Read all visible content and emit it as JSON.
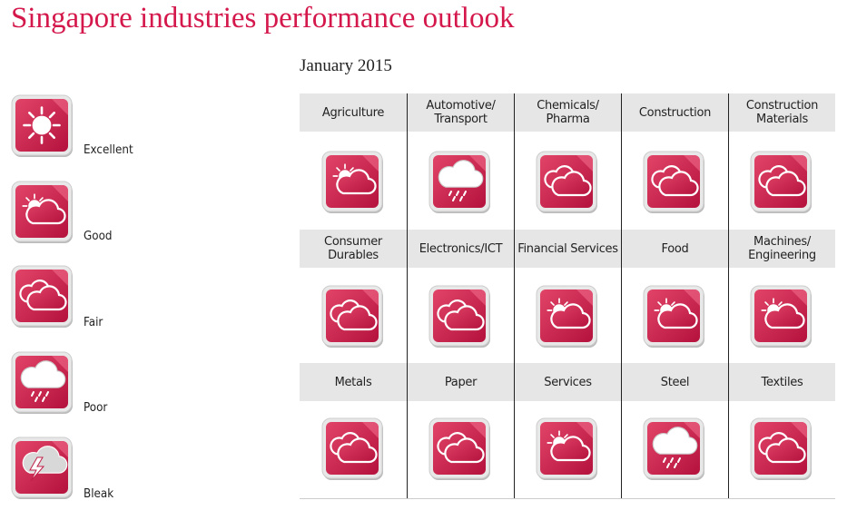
{
  "header": {
    "title": "Singapore industries performance outlook",
    "date": "January 2015"
  },
  "legend": [
    {
      "label": "Excellent"
    },
    {
      "label": "Good"
    },
    {
      "label": "Fair"
    },
    {
      "label": "Poor"
    },
    {
      "label": "Bleak"
    }
  ],
  "industries": [
    {
      "name": "Agriculture",
      "rating": "Good"
    },
    {
      "name": "Automotive/\nTransport",
      "rating": "Poor"
    },
    {
      "name": "Chemicals/\nPharma",
      "rating": "Fair"
    },
    {
      "name": "Construction",
      "rating": "Fair"
    },
    {
      "name": "Construction\nMaterials",
      "rating": "Fair"
    },
    {
      "name": "Consumer\nDurables",
      "rating": "Fair"
    },
    {
      "name": "Electronics/ICT",
      "rating": "Fair"
    },
    {
      "name": "Financial Services",
      "rating": "Good"
    },
    {
      "name": "Food",
      "rating": "Good"
    },
    {
      "name": "Machines/\nEngineering",
      "rating": "Good"
    },
    {
      "name": "Metals",
      "rating": "Fair"
    },
    {
      "name": "Paper",
      "rating": "Fair"
    },
    {
      "name": "Services",
      "rating": "Good"
    },
    {
      "name": "Steel",
      "rating": "Poor"
    },
    {
      "name": "Textiles",
      "rating": "Fair"
    }
  ]
}
